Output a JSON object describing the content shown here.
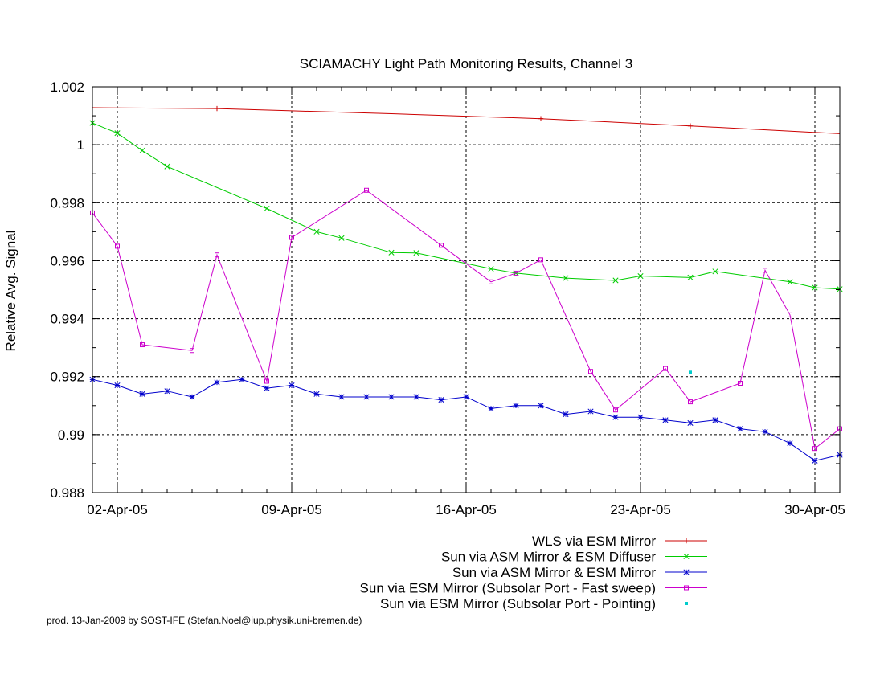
{
  "chart_data": {
    "type": "line",
    "title": "SCIAMACHY Light Path Monitoring Results, Channel 3",
    "ylabel": "Relative Avg. Signal",
    "xlabel": "",
    "xlim": [
      "2005-04-01",
      "2005-05-01"
    ],
    "ylim": [
      0.988,
      1.002
    ],
    "x_ticks": [
      "02-Apr-05",
      "09-Apr-05",
      "16-Apr-05",
      "23-Apr-05",
      "30-Apr-05"
    ],
    "x_tick_dates": [
      "2005-04-02",
      "2005-04-09",
      "2005-04-16",
      "2005-04-23",
      "2005-04-30"
    ],
    "y_ticks": [
      "0.988",
      "0.99",
      "0.992",
      "0.994",
      "0.996",
      "0.998",
      "1",
      "1.002"
    ],
    "y_tick_values": [
      0.988,
      0.99,
      0.992,
      0.994,
      0.996,
      0.998,
      1.0,
      1.002
    ],
    "grid": true,
    "legend_position": "bottom-right",
    "footer": "prod. 13-Jan-2009 by SOST-IFE (Stefan.Noel@iup.physik.uni-bremen.de)",
    "series": [
      {
        "name": "WLS via ESM Mirror",
        "color": "#cc0000",
        "marker": "plus",
        "x": [
          "2005-04-06",
          "2005-04-19",
          "2005-04-25"
        ],
        "y": [
          1.00125,
          1.0009,
          1.00065
        ],
        "line_x": [
          "2005-04-01",
          "2005-04-06",
          "2005-04-09",
          "2005-04-13",
          "2005-04-19",
          "2005-04-25",
          "2005-05-01"
        ],
        "line_y": [
          1.00128,
          1.00125,
          1.00117,
          1.00107,
          1.0009,
          1.00065,
          1.00038
        ]
      },
      {
        "name": "Sun via ASM Mirror & ESM Diffuser",
        "color": "#00cc00",
        "marker": "x",
        "x": [
          "2005-04-01",
          "2005-04-02",
          "2005-04-03",
          "2005-04-04",
          "2005-04-08",
          "2005-04-10",
          "2005-04-11",
          "2005-04-13",
          "2005-04-14",
          "2005-04-17",
          "2005-04-18",
          "2005-04-20",
          "2005-04-22",
          "2005-04-23",
          "2005-04-25",
          "2005-04-26",
          "2005-04-29",
          "2005-04-30",
          "2005-05-01"
        ],
        "y": [
          1.00075,
          1.0004,
          0.9998,
          0.99925,
          0.9978,
          0.997,
          0.99678,
          0.99628,
          0.99627,
          0.99572,
          0.99557,
          0.9954,
          0.99532,
          0.99547,
          0.99542,
          0.99563,
          0.99527,
          0.99507,
          0.99502
        ]
      },
      {
        "name": "Sun via ASM Mirror & ESM Mirror",
        "color": "#0000cc",
        "marker": "star",
        "x": [
          "2005-04-01",
          "2005-04-02",
          "2005-04-03",
          "2005-04-04",
          "2005-04-05",
          "2005-04-06",
          "2005-04-07",
          "2005-04-08",
          "2005-04-09",
          "2005-04-10",
          "2005-04-11",
          "2005-04-12",
          "2005-04-13",
          "2005-04-14",
          "2005-04-15",
          "2005-04-16",
          "2005-04-17",
          "2005-04-18",
          "2005-04-19",
          "2005-04-20",
          "2005-04-21",
          "2005-04-22",
          "2005-04-23",
          "2005-04-24",
          "2005-04-25",
          "2005-04-26",
          "2005-04-27",
          "2005-04-28",
          "2005-04-29",
          "2005-04-30",
          "2005-05-01"
        ],
        "y": [
          0.9919,
          0.9917,
          0.9914,
          0.9915,
          0.9913,
          0.9918,
          0.9919,
          0.9916,
          0.9917,
          0.9914,
          0.9913,
          0.9913,
          0.9913,
          0.9913,
          0.9912,
          0.9913,
          0.9909,
          0.991,
          0.991,
          0.9907,
          0.9908,
          0.9906,
          0.9906,
          0.9905,
          0.9904,
          0.9905,
          0.9902,
          0.9901,
          0.9897,
          0.9891,
          0.9893
        ]
      },
      {
        "name": "Sun via ESM Mirror (Subsolar Port - Fast sweep)",
        "color": "#cc00cc",
        "marker": "square",
        "x": [
          "2005-04-01",
          "2005-04-02",
          "2005-04-03",
          "2005-04-05",
          "2005-04-06",
          "2005-04-08",
          "2005-04-09",
          "2005-04-12",
          "2005-04-15",
          "2005-04-17",
          "2005-04-18",
          "2005-04-19",
          "2005-04-21",
          "2005-04-22",
          "2005-04-24",
          "2005-04-25",
          "2005-04-27",
          "2005-04-28",
          "2005-04-29",
          "2005-04-30",
          "2005-05-01"
        ],
        "y": [
          0.99765,
          0.9965,
          0.9931,
          0.9929,
          0.9962,
          0.99184,
          0.9968,
          0.99843,
          0.99653,
          0.99527,
          0.99557,
          0.99603,
          0.99218,
          0.99085,
          0.99228,
          0.99113,
          0.99177,
          0.99567,
          0.99413,
          0.98952,
          0.9902
        ]
      },
      {
        "name": "Sun via ESM Mirror (Subsolar Port - Pointing)",
        "color": "#00cccc",
        "marker": "dot",
        "x": [
          "2005-04-25"
        ],
        "y": [
          0.99215
        ]
      }
    ]
  }
}
